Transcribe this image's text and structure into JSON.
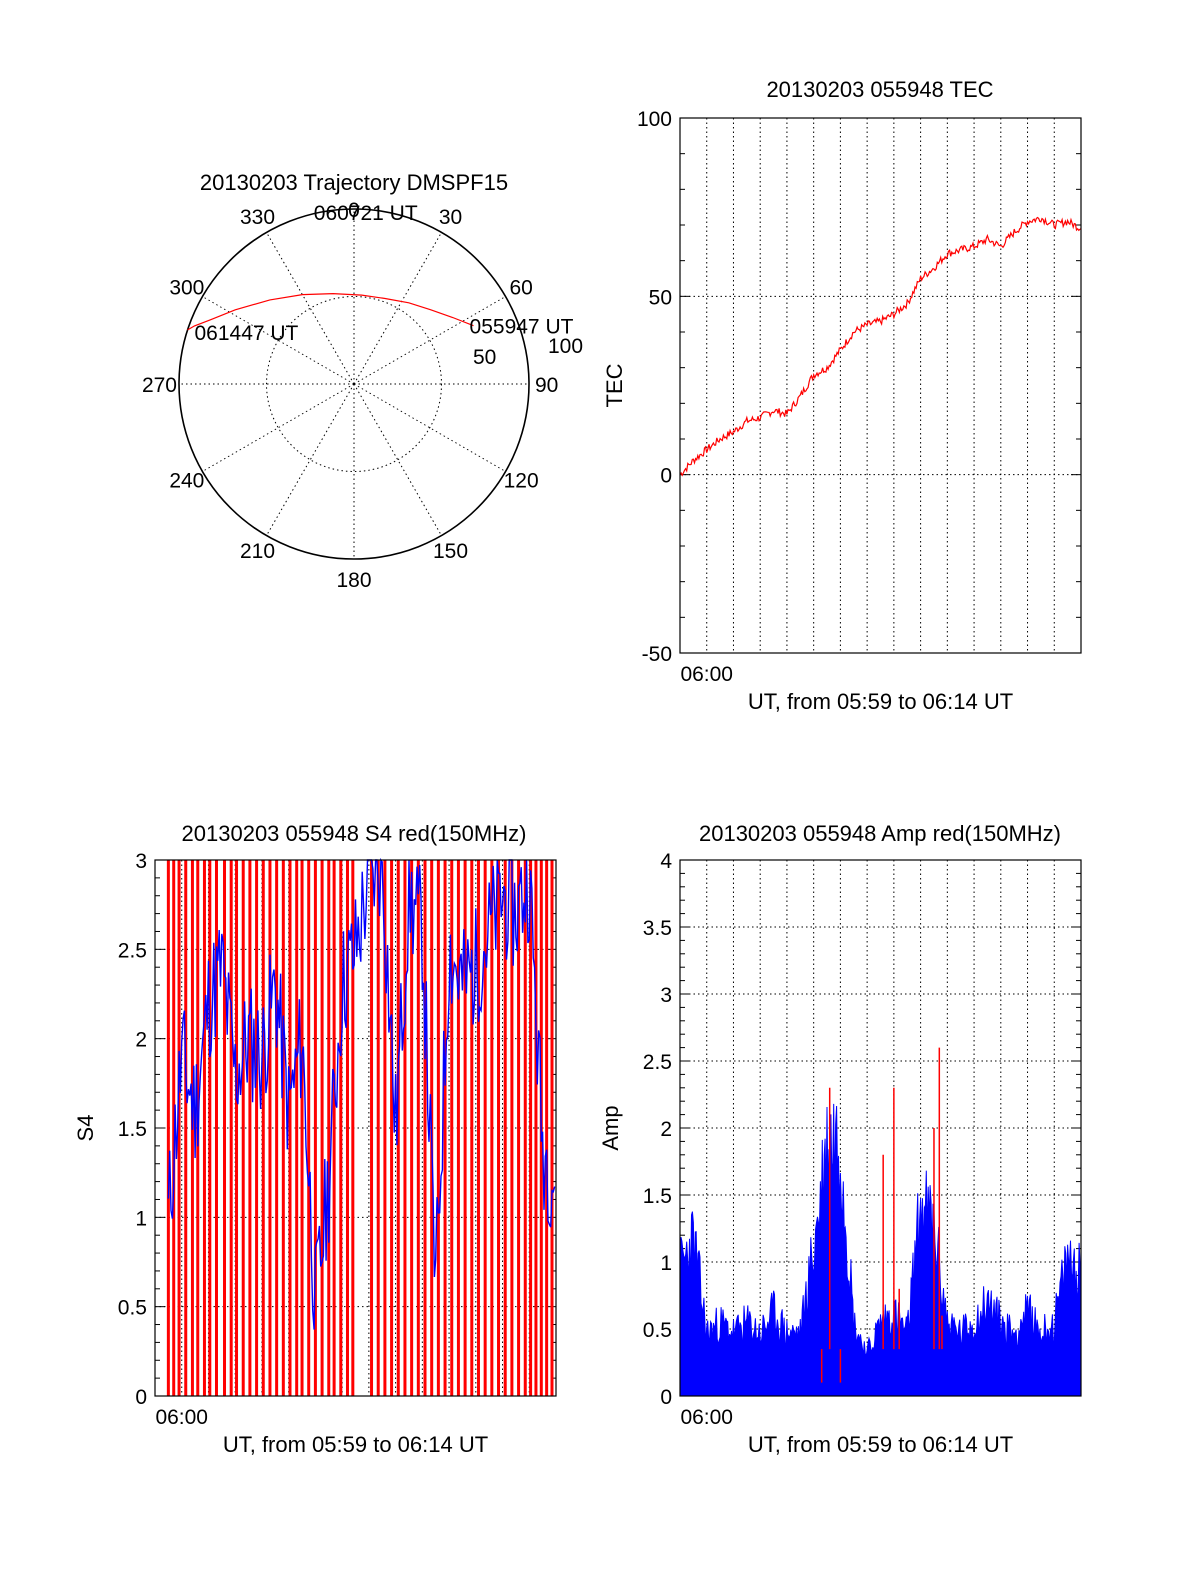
{
  "chart_data": [
    {
      "type": "polar",
      "title": "20130203 Trajectory DMSPF15",
      "angle_labels": [
        "0",
        "30",
        "60",
        "90",
        "120",
        "150",
        "180",
        "210",
        "240",
        "270",
        "300",
        "330"
      ],
      "radial_labels": [
        "50",
        "100"
      ],
      "radial_range": [
        0,
        100
      ],
      "grid": true,
      "colors": {
        "trajectory": "#ff0000"
      },
      "series": [
        {
          "points": [
            {
              "az": 64,
              "r": 76
            },
            {
              "az": 56,
              "r": 68
            },
            {
              "az": 46,
              "r": 61
            },
            {
              "az": 34,
              "r": 56
            },
            {
              "az": 20,
              "r": 52
            },
            {
              "az": 5,
              "r": 51
            },
            {
              "az": -13,
              "r": 53
            },
            {
              "az": -30,
              "r": 59
            },
            {
              "az": -45,
              "r": 68
            },
            {
              "az": -58,
              "r": 80
            },
            {
              "az": -66,
              "r": 90
            },
            {
              "az": -70,
              "r": 97
            },
            {
              "az": -72,
              "r": 100
            }
          ]
        }
      ],
      "annotations": [
        {
          "text": "055947 UT",
          "az": 64,
          "r": 76
        },
        {
          "text": "060721 UT",
          "az": 5,
          "r": 51
        },
        {
          "text": "061447 UT",
          "az": -70,
          "r": 97
        }
      ]
    },
    {
      "type": "line",
      "title": "20130203 055948 TEC",
      "xlabel": "UT, from 05:59 to 06:14 UT",
      "ylabel": "TEC",
      "xlim": [
        0,
        15
      ],
      "ylim": [
        -50,
        100
      ],
      "yticks": [
        "-50",
        "0",
        "50",
        "100"
      ],
      "xticks": [
        {
          "x": 1,
          "label": "06:00"
        }
      ],
      "grid": true,
      "colors": {
        "line": "#ff0000"
      },
      "series": [
        {
          "x": [
            0,
            0.5,
            1,
            1.5,
            2,
            2.5,
            3,
            3.5,
            4,
            4.5,
            5,
            5.5,
            6,
            6.5,
            7,
            7.5,
            8,
            8.5,
            9,
            9.5,
            10,
            10.5,
            11,
            11.5,
            12,
            12.5,
            13,
            13.5,
            14,
            14.5,
            15
          ],
          "y": [
            0,
            4,
            7,
            10,
            12,
            15,
            16,
            18,
            17,
            22,
            28,
            30,
            35,
            40,
            42,
            43,
            45,
            48,
            55,
            58,
            62,
            63,
            64,
            66,
            64,
            68,
            71,
            72,
            70,
            71,
            69
          ]
        }
      ]
    },
    {
      "type": "bar",
      "title": "20130203 055948 S4 red(150MHz)",
      "xlabel": "UT, from 05:59 to 06:14 UT",
      "ylabel": "S4",
      "xlim": [
        0,
        15
      ],
      "ylim": [
        0,
        3
      ],
      "yticks": [
        "0",
        "0.5",
        "1",
        "1.5",
        "2",
        "2.5",
        "3"
      ],
      "xticks": [
        {
          "x": 1,
          "label": "06:00"
        }
      ],
      "grid": true,
      "colors": {
        "red": "#ff0000",
        "blue": "#0000ff"
      },
      "series": [
        {
          "color": "red",
          "x": [
            0.5,
            0.7,
            0.9,
            1.15,
            1.4,
            1.6,
            1.85,
            2.05,
            2.3,
            2.6,
            2.85,
            3.05,
            3.3,
            3.55,
            3.8,
            4.05,
            4.3,
            4.55,
            4.8,
            5.05,
            5.3,
            5.5,
            5.75,
            6.0,
            6.25,
            6.5,
            6.7,
            6.95,
            7.2,
            7.4,
            8.1,
            8.35,
            8.6,
            8.85,
            9.1,
            9.35,
            9.6,
            9.85,
            10.1,
            10.35,
            10.6,
            10.85,
            11.1,
            11.35,
            11.6,
            11.85,
            12.1,
            12.35,
            12.6,
            12.85,
            13.1,
            13.35,
            13.6,
            13.85,
            14.05,
            14.25,
            14.45,
            14.65,
            14.85
          ],
          "y": [
            3,
            3,
            3,
            3,
            3,
            3,
            3,
            3,
            3,
            3,
            3,
            3,
            3,
            3,
            3,
            3,
            3,
            3,
            3,
            3,
            3,
            3,
            3,
            3,
            3,
            3,
            3,
            3,
            3,
            3,
            3,
            3,
            3,
            3,
            3,
            3,
            3,
            3,
            3,
            3,
            3,
            3,
            3,
            3,
            3,
            3,
            3,
            3,
            3,
            3,
            3,
            3,
            3,
            3,
            3,
            3,
            3,
            3,
            3
          ]
        },
        {
          "color": "blue",
          "x": [
            0.5,
            1,
            1.5,
            2,
            2.5,
            3,
            3.5,
            4,
            4.5,
            5,
            5.5,
            6,
            6.5,
            7,
            7.5,
            8,
            8.5,
            9,
            9.5,
            10,
            10.5,
            11,
            11.5,
            12,
            12.5,
            13,
            13.5,
            14,
            14.5,
            15
          ],
          "y": [
            1.0,
            1.9,
            1.6,
            2.2,
            2.4,
            1.8,
            2.0,
            1.9,
            2.3,
            1.6,
            2.0,
            0.5,
            1.2,
            2.3,
            2.5,
            2.9,
            3.0,
            1.5,
            2.8,
            2.6,
            0.6,
            2.5,
            2.3,
            2.4,
            2.6,
            2.8,
            2.7,
            2.9,
            1.4,
            1.2
          ]
        }
      ]
    },
    {
      "type": "bar",
      "title": "20130203 055948 Amp red(150MHz)",
      "xlabel": "UT, from 05:59 to 06:14 UT",
      "ylabel": "Amp",
      "xlim": [
        0,
        15
      ],
      "ylim": [
        0,
        4
      ],
      "yticks": [
        "0",
        "0.5",
        "1",
        "1.5",
        "2",
        "2.5",
        "3",
        "3.5",
        "4"
      ],
      "xticks": [
        {
          "x": 1,
          "label": "06:00"
        }
      ],
      "grid": true,
      "colors": {
        "red": "#ff0000",
        "blue": "#0000ff"
      },
      "series": [
        {
          "color": "blue",
          "x": [
            0.0,
            0.5,
            1.0,
            1.5,
            2.0,
            2.5,
            3.0,
            3.5,
            4.0,
            4.5,
            5.0,
            5.5,
            6.0,
            6.5,
            7.0,
            7.5,
            8.0,
            8.5,
            9.0,
            9.5,
            10.0,
            10.5,
            11.0,
            11.5,
            12.0,
            12.5,
            13.0,
            13.5,
            14.0,
            14.5,
            15.0
          ],
          "y": [
            1.2,
            1.5,
            0.6,
            0.7,
            0.6,
            0.7,
            0.6,
            0.8,
            0.6,
            0.6,
            1.4,
            2.4,
            2.5,
            0.7,
            0.4,
            0.7,
            0.8,
            0.6,
            1.8,
            1.6,
            0.7,
            0.6,
            0.7,
            0.9,
            0.7,
            0.6,
            0.8,
            0.6,
            0.7,
            1.3,
            1.2
          ]
        },
        {
          "color": "red",
          "x": [
            5.3,
            5.6,
            6.0,
            7.6,
            8.0,
            8.2,
            9.5,
            9.7,
            9.8
          ],
          "y": [
            0.1,
            2.3,
            0.1,
            1.8,
            2.3,
            0.8,
            2.0,
            2.6,
            0.6
          ]
        }
      ]
    }
  ]
}
